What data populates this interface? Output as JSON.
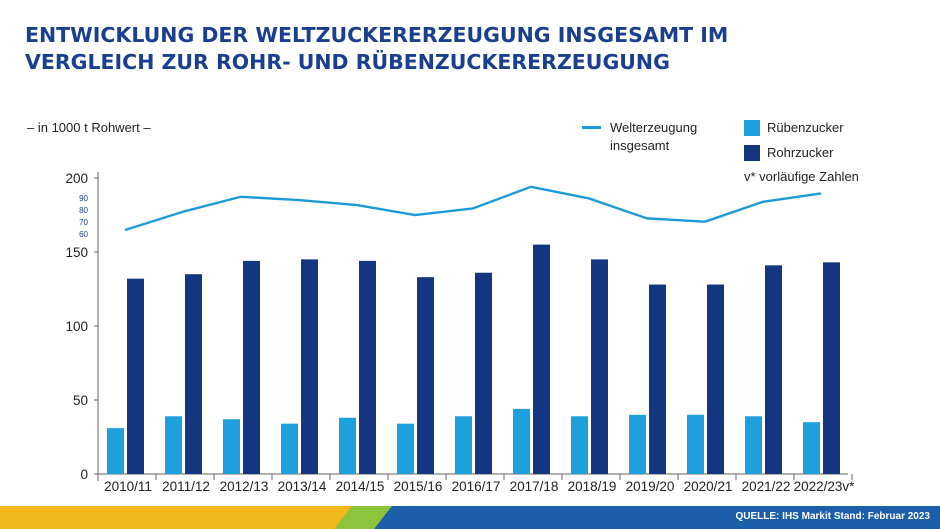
{
  "title_lines": [
    "ENTWICKLUNG DER WELTZUCKERERZEUGUNG INSGESAMT IM",
    "VERGLEICH ZUR ROHR- UND RÜBENZUCKERERZEUGUNG"
  ],
  "unit_label": "– in 1000 t Rohwert –",
  "legend": {
    "line_label_1": "Welterzeugung",
    "line_label_2": "insgesamt",
    "beet_label": "Rübenzucker",
    "cane_label": "Rohrzucker"
  },
  "note": "v* vorläufige Zahlen",
  "source": "QUELLE: IHS Markit Stand: Februar 2023",
  "colors": {
    "title": "#1a3f8f",
    "beet": "#1ea0dc",
    "cane": "#14357f",
    "world_line": "#1e9bd7",
    "footer_yellow": "#f2b81c",
    "footer_green": "#8cc43c",
    "footer_blue": "#1b5fab"
  },
  "chart_data": {
    "type": "bar",
    "categories": [
      "2010/11",
      "2011/12",
      "2012/13",
      "2013/14",
      "2014/15",
      "2015/16",
      "2016/17",
      "2017/18",
      "2018/19",
      "2019/20",
      "2020/21",
      "2021/22",
      "2022/23v*"
    ],
    "series": [
      {
        "name": "Rübenzucker",
        "type": "bar",
        "values": [
          31,
          39,
          37,
          34,
          38,
          34,
          39,
          44,
          39,
          40,
          40,
          39,
          35
        ]
      },
      {
        "name": "Rohrzucker",
        "type": "bar",
        "values": [
          132,
          135,
          144,
          145,
          144,
          133,
          136,
          155,
          145,
          128,
          128,
          141,
          143
        ]
      },
      {
        "name": "Welterzeugung insgesamt",
        "type": "line",
        "values": [
          164,
          175,
          184,
          182,
          179,
          173,
          177,
          190,
          183,
          171,
          169,
          181,
          186
        ]
      }
    ],
    "ylim": [
      0,
      200
    ],
    "y_ticks": [
      0,
      50,
      100,
      150,
      200
    ],
    "y_break_labels": [
      "90",
      "80",
      "70",
      "60"
    ],
    "y_break_note": "axis break above 150; the Welterzeugung line is drawn against a compressed upper scale",
    "grid": false,
    "legend_position": "top-right"
  }
}
